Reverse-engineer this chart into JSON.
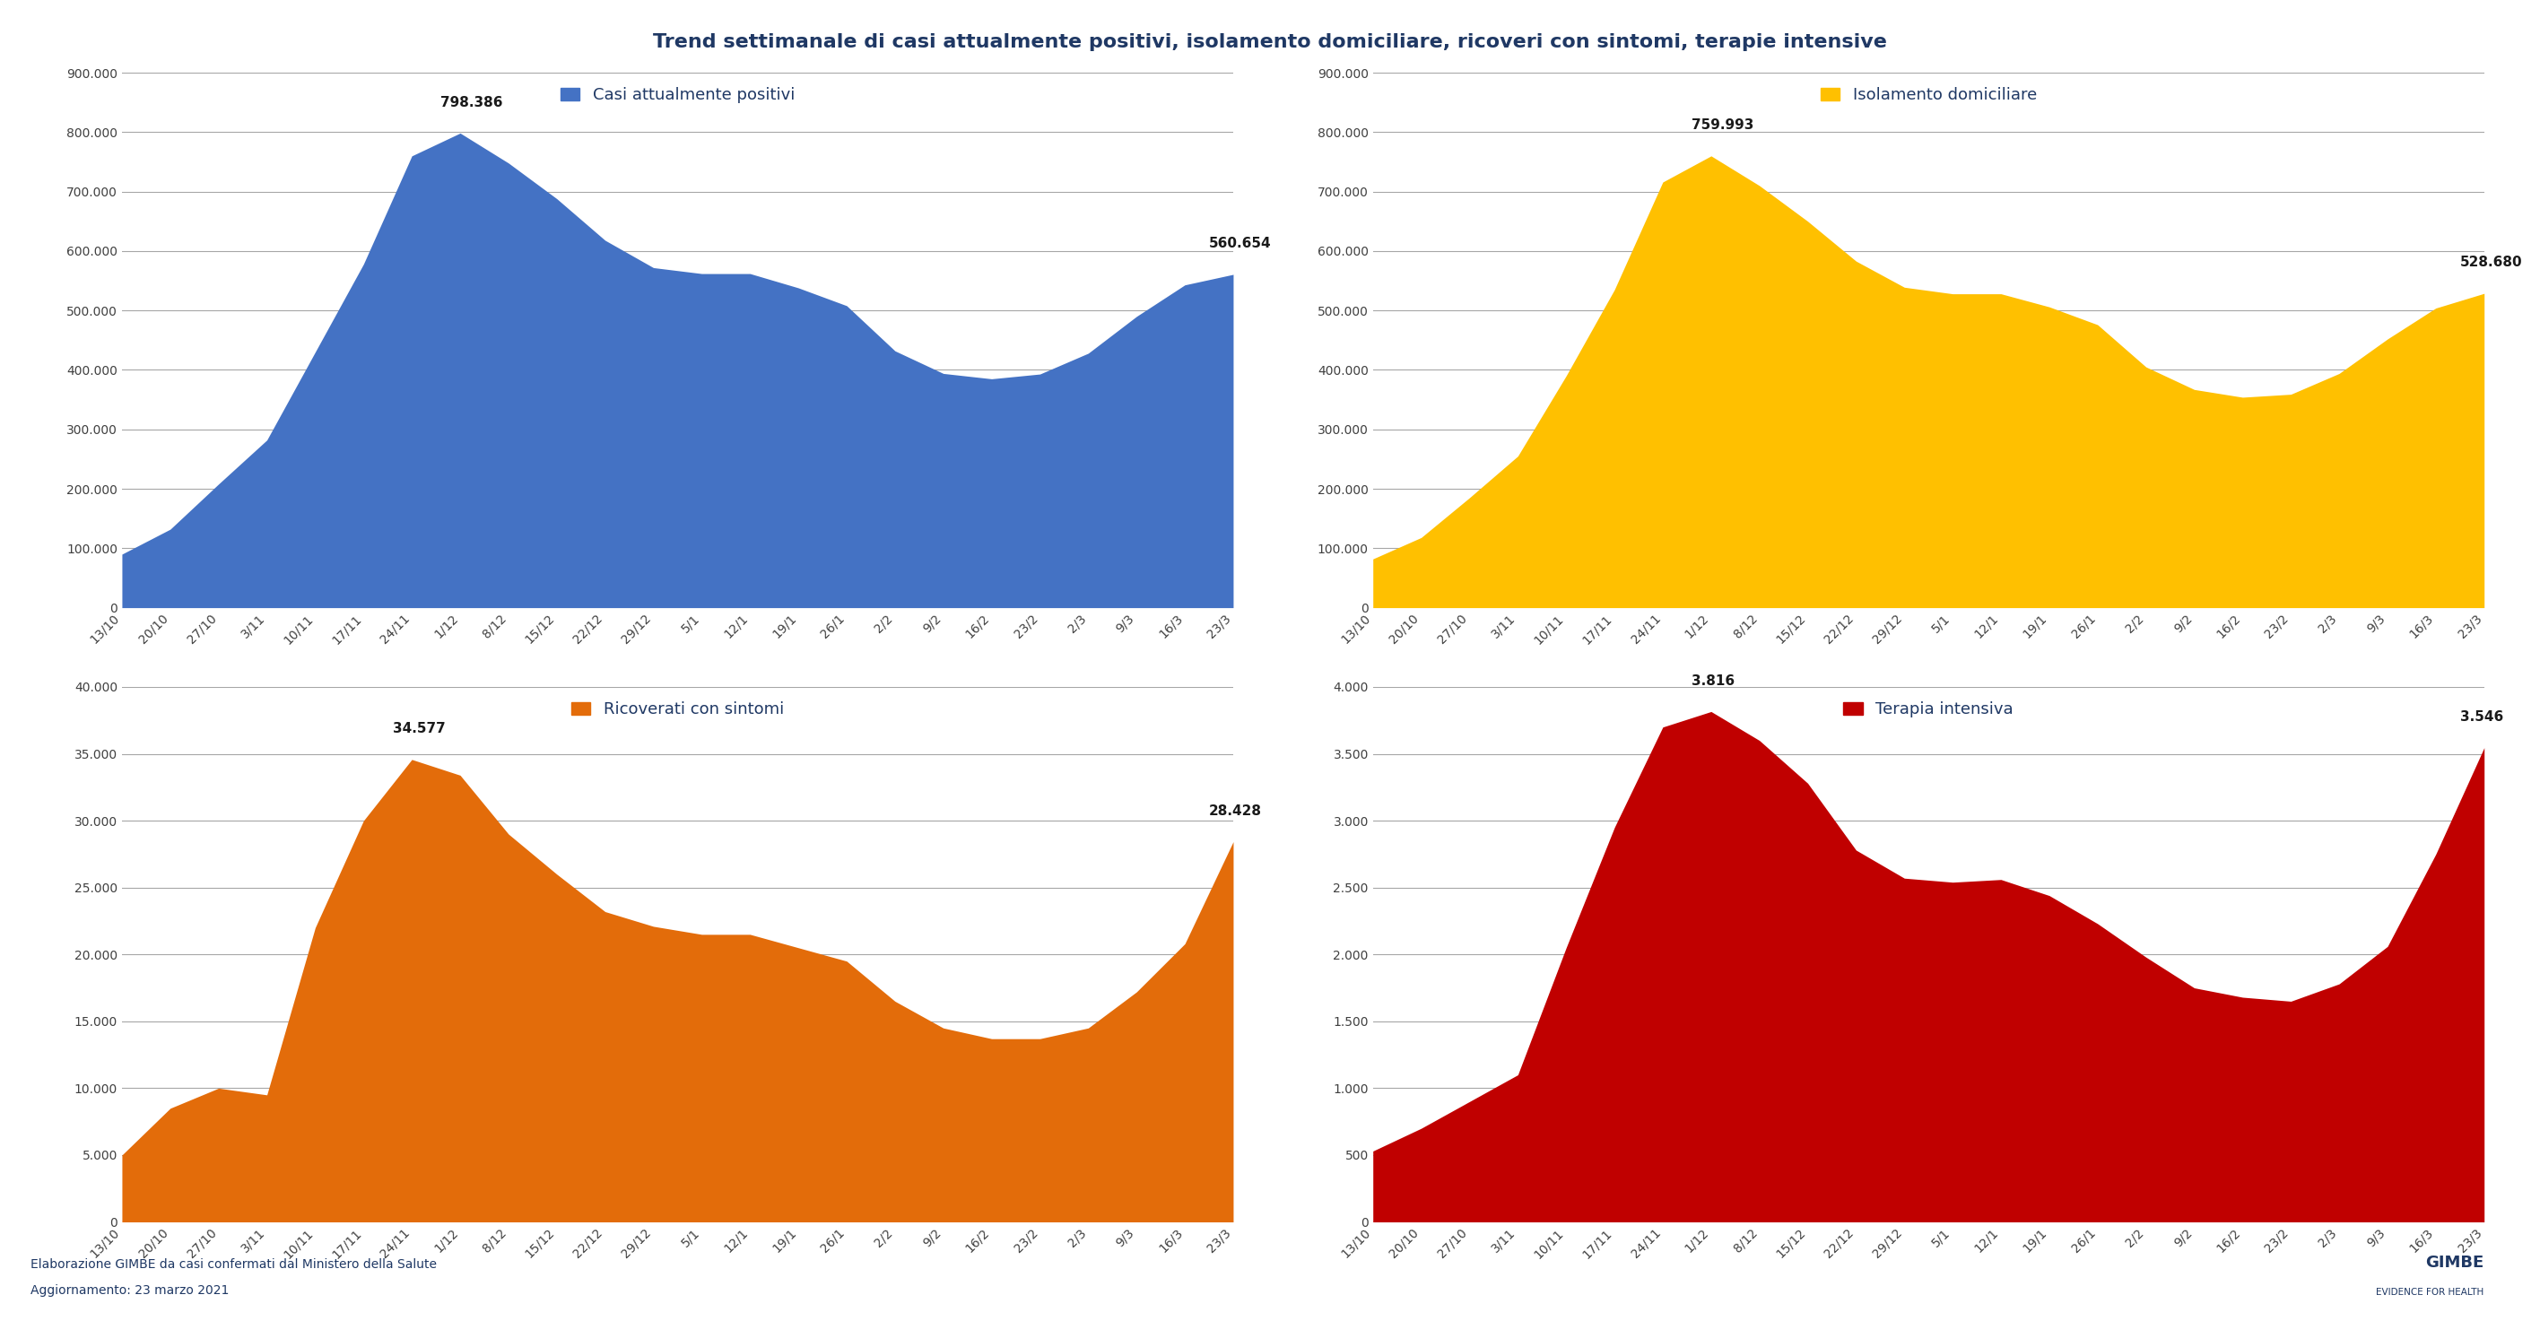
{
  "title": "Trend settimanale di casi attualmente positivi, isolamento domiciliare, ricoveri con sintomi, terapie intensive",
  "title_color": "#1f3864",
  "footer1": "Elaborazione GIMBE da casi confermati dal Ministero della Salute",
  "footer2": "Aggiornamento: 23 marzo 2021",
  "footer_color": "#1f3864",
  "x_labels": [
    "13/10",
    "20/10",
    "27/10",
    "3/11",
    "10/11",
    "17/11",
    "24/11",
    "1/12",
    "8/12",
    "15/12",
    "22/12",
    "29/12",
    "5/1",
    "12/1",
    "19/1",
    "26/1",
    "2/2",
    "9/2",
    "16/2",
    "23/2",
    "2/3",
    "9/3",
    "16/3",
    "23/3"
  ],
  "plot1": {
    "label": "Casi attualmente positivi",
    "color": "#4472c4",
    "max_label": "798.386",
    "end_label": "560.654",
    "ylim": [
      0,
      900000
    ],
    "yticks": [
      0,
      100000,
      200000,
      300000,
      400000,
      500000,
      600000,
      700000,
      800000,
      900000
    ],
    "ytick_labels": [
      "0",
      "100.000",
      "200.000",
      "300.000",
      "400.000",
      "500.000",
      "600.000",
      "700.000",
      "800.000",
      "900.000"
    ],
    "values": [
      90000,
      132000,
      208000,
      282000,
      430000,
      578000,
      760000,
      798386,
      748000,
      688000,
      618000,
      572000,
      562000,
      562000,
      538000,
      508000,
      432000,
      394000,
      385000,
      393000,
      428000,
      490000,
      543000,
      560654
    ]
  },
  "plot2": {
    "label": "Isolamento domiciliare",
    "color": "#ffc000",
    "max_label": "759.993",
    "end_label": "528.680",
    "ylim": [
      0,
      900000
    ],
    "yticks": [
      0,
      100000,
      200000,
      300000,
      400000,
      500000,
      600000,
      700000,
      800000,
      900000
    ],
    "ytick_labels": [
      "0",
      "100.000",
      "200.000",
      "300.000",
      "400.000",
      "500.000",
      "600.000",
      "700.000",
      "800.000",
      "900.000"
    ],
    "values": [
      82000,
      118000,
      185000,
      255000,
      390000,
      535000,
      716000,
      759993,
      710000,
      650000,
      583000,
      539000,
      528000,
      528000,
      506000,
      476000,
      405000,
      367000,
      354000,
      359000,
      394000,
      452000,
      504000,
      528680
    ]
  },
  "plot3": {
    "label": "Ricoverati con sintomi",
    "color": "#e36c0a",
    "max_label": "34.577",
    "end_label": "28.428",
    "ylim": [
      0,
      40000
    ],
    "yticks": [
      0,
      5000,
      10000,
      15000,
      20000,
      25000,
      30000,
      35000,
      40000
    ],
    "ytick_labels": [
      "0",
      "5.000",
      "10.000",
      "15.000",
      "20.000",
      "25.000",
      "30.000",
      "35.000",
      "40.000"
    ],
    "values": [
      5000,
      8500,
      10000,
      9500,
      22000,
      30000,
      34577,
      33400,
      29000,
      26000,
      23200,
      22100,
      21500,
      21500,
      20500,
      19500,
      16500,
      14500,
      13700,
      13700,
      14500,
      17200,
      20800,
      28428
    ]
  },
  "plot4": {
    "label": "Terapia intensiva",
    "color": "#c00000",
    "max_label": "3.816",
    "end_label": "3.546",
    "ylim": [
      0,
      4000
    ],
    "yticks": [
      0,
      500,
      1000,
      1500,
      2000,
      2500,
      3000,
      3500,
      4000
    ],
    "ytick_labels": [
      "0",
      "500",
      "1.000",
      "1.500",
      "2.000",
      "2.500",
      "3.000",
      "3.500",
      "4.000"
    ],
    "values": [
      530,
      700,
      900,
      1100,
      2050,
      2950,
      3700,
      3816,
      3600,
      3280,
      2780,
      2570,
      2540,
      2560,
      2440,
      2230,
      1980,
      1750,
      1680,
      1650,
      1780,
      2060,
      2750,
      3546
    ]
  },
  "background_color": "#ffffff",
  "grid_color": "#a6a6a6",
  "axis_label_color": "#404040",
  "legend_color": "#1f3864",
  "title_fontsize": 16,
  "legend_fontsize": 13,
  "tick_fontsize": 10,
  "annot_fontsize": 11
}
